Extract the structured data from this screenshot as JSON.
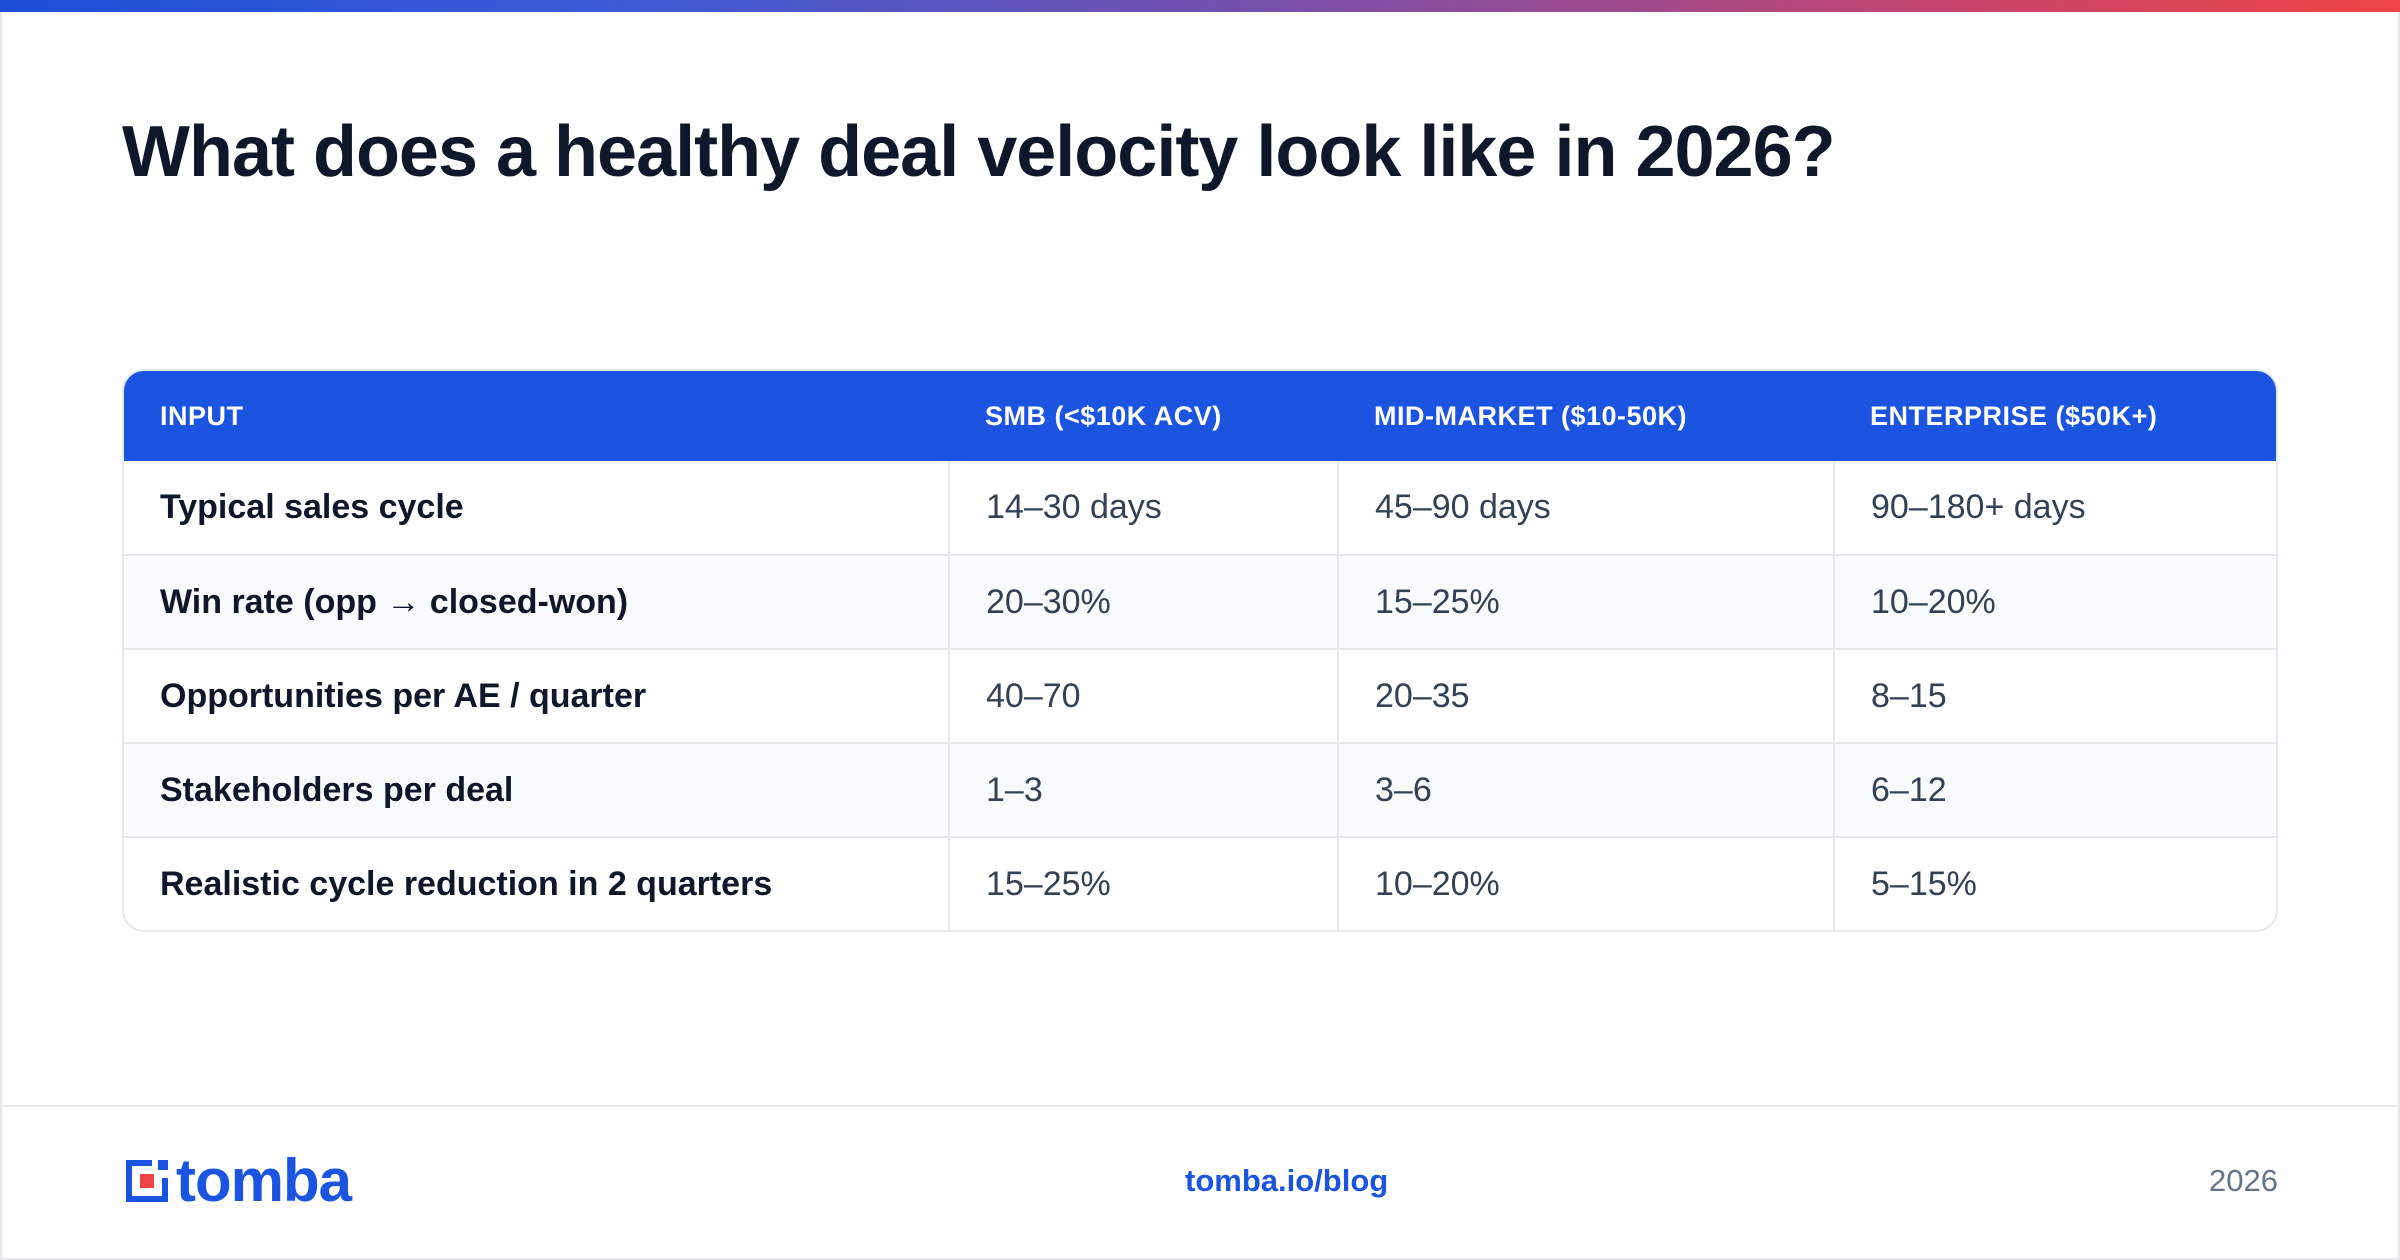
{
  "title": "What does a healthy deal velocity look like in 2026?",
  "table": {
    "headers": [
      "INPUT",
      "SMB (<$10K ACV)",
      "MID-MARKET ($10-50K)",
      "ENTERPRISE ($50K+)"
    ],
    "rows": [
      {
        "label": "Typical sales cycle",
        "smb": "14–30 days",
        "mid": "45–90 days",
        "ent": "90–180+ days"
      },
      {
        "label": "Win rate (opp → closed-won)",
        "smb": "20–30%",
        "mid": "15–25%",
        "ent": "10–20%"
      },
      {
        "label": "Opportunities per AE / quarter",
        "smb": "40–70",
        "mid": "20–35",
        "ent": "8–15"
      },
      {
        "label": "Stakeholders per deal",
        "smb": "1–3",
        "mid": "3–6",
        "ent": "6–12"
      },
      {
        "label": "Realistic cycle reduction in 2 quarters",
        "smb": "15–25%",
        "mid": "10–20%",
        "ent": "5–15%"
      }
    ]
  },
  "footer": {
    "logo_text": "tomba",
    "logo_icon": "tomba-logo-icon",
    "url": "tomba.io/blog",
    "year": "2026"
  },
  "colors": {
    "brand_blue": "#1b54e0",
    "accent_red": "#ef4444",
    "title_text": "#0f172a"
  }
}
